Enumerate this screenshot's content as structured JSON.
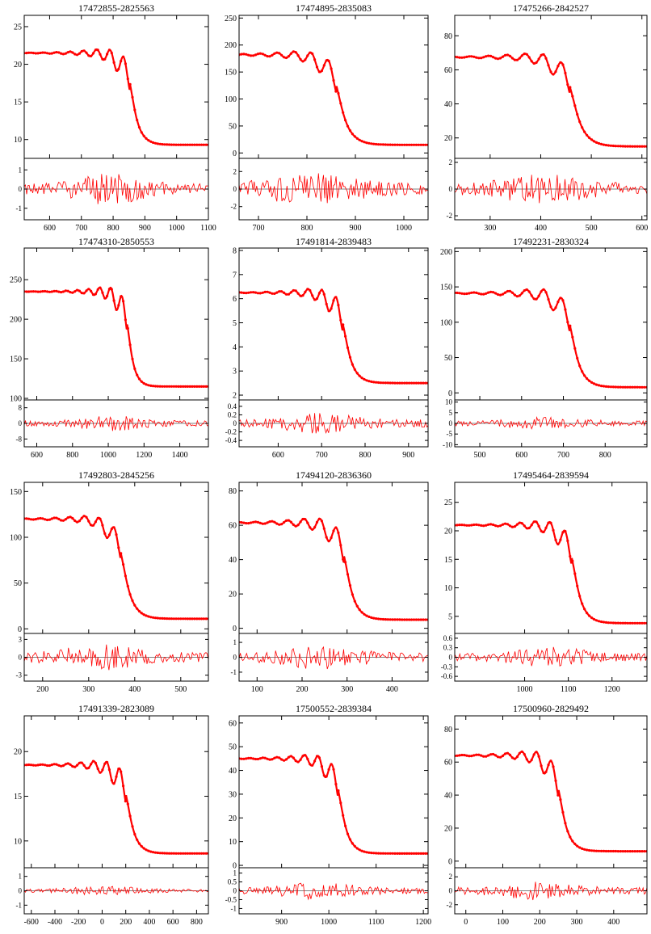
{
  "chart_data": [
    {
      "type": "line",
      "title": "17472855-2825563",
      "xlim": [
        520,
        1100
      ],
      "xticks": [
        600,
        700,
        800,
        900,
        1000,
        1100
      ],
      "ylim": [
        7.5,
        26.5
      ],
      "yticks": [
        10,
        15,
        20,
        25
      ],
      "rlim": [
        -1.6,
        1.6
      ],
      "rticks": [
        1,
        0,
        -1
      ],
      "model": {
        "base": 21.5,
        "amp": 4.5,
        "tail": 9.3,
        "center": 852,
        "width": 20,
        "period": 42,
        "osc_depth": 2.2
      },
      "residual": {
        "scale": 0.3,
        "seed": 1
      },
      "colors": {
        "model": "#ff0000",
        "data": "#000000"
      }
    },
    {
      "type": "line",
      "title": "17474895-2835083",
      "xlim": [
        660,
        1050
      ],
      "xticks": [
        700,
        800,
        900,
        1000
      ],
      "ylim": [
        -10,
        255
      ],
      "yticks": [
        0,
        50,
        100,
        150,
        200,
        250
      ],
      "rlim": [
        -3.5,
        3.5
      ],
      "rticks": [
        2,
        0,
        -2
      ],
      "model": {
        "base": 182,
        "amp": 58,
        "tail": 15,
        "center": 860,
        "width": 17,
        "period": 35,
        "osc_depth": 28
      },
      "residual": {
        "scale": 0.7,
        "seed": 2
      },
      "colors": {
        "model": "#ff0000",
        "data": "#000000"
      }
    },
    {
      "type": "line",
      "title": "17475266-2842527",
      "xlim": [
        230,
        610
      ],
      "xticks": [
        300,
        400,
        500,
        600
      ],
      "ylim": [
        8,
        92
      ],
      "yticks": [
        20,
        40,
        60,
        80
      ],
      "rlim": [
        -2.3,
        2.3
      ],
      "rticks": [
        2,
        0,
        -2
      ],
      "model": {
        "base": 67.5,
        "amp": 17,
        "tail": 15,
        "center": 458,
        "width": 17,
        "period": 36,
        "osc_depth": 9
      },
      "residual": {
        "scale": 0.4,
        "seed": 3
      },
      "colors": {
        "model": "#ff0000",
        "data": "#000000"
      }
    },
    {
      "type": "line",
      "title": "17474310-2850553",
      "xlim": [
        530,
        1560
      ],
      "xticks": [
        600,
        800,
        1000,
        1200,
        1400
      ],
      "ylim": [
        98,
        290
      ],
      "yticks": [
        100,
        150,
        200,
        250
      ],
      "rlim": [
        -12,
        12
      ],
      "rticks": [
        8,
        0,
        -8
      ],
      "model": {
        "base": 235,
        "amp": 40,
        "tail": 115,
        "center": 1105,
        "width": 28,
        "period": 62,
        "osc_depth": 22
      },
      "residual": {
        "scale": 1.5,
        "seed": 4
      },
      "colors": {
        "model": "#ff0000",
        "data": "#000000"
      }
    },
    {
      "type": "line",
      "title": "17491814-2839483",
      "xlim": [
        510,
        945
      ],
      "xticks": [
        600,
        700,
        800,
        900
      ],
      "ylim": [
        1.8,
        8.1
      ],
      "yticks": [
        2,
        3,
        4,
        5,
        6,
        7,
        8
      ],
      "rlim": [
        -0.55,
        0.55
      ],
      "rticks": [
        0.4,
        0.2,
        0,
        -0.2,
        -0.4
      ],
      "model": {
        "base": 6.25,
        "amp": 1.3,
        "tail": 2.5,
        "center": 748,
        "width": 16,
        "period": 32,
        "osc_depth": 0.7
      },
      "residual": {
        "scale": 0.09,
        "seed": 5
      },
      "colors": {
        "model": "#ff0000",
        "data": "#000000"
      }
    },
    {
      "type": "line",
      "title": "17492231-2830324",
      "xlim": [
        440,
        900
      ],
      "xticks": [
        500,
        600,
        700,
        800
      ],
      "ylim": [
        -10,
        205
      ],
      "yticks": [
        0,
        50,
        100,
        150,
        200
      ],
      "rlim": [
        -11,
        11
      ],
      "rticks": [
        10,
        5,
        0,
        -5,
        -10
      ],
      "model": {
        "base": 141,
        "amp": 46,
        "tail": 8,
        "center": 715,
        "width": 18,
        "period": 42,
        "osc_depth": 22
      },
      "residual": {
        "scale": 1.1,
        "seed": 6
      },
      "colors": {
        "model": "#ff0000",
        "data": "#000000"
      }
    },
    {
      "type": "line",
      "title": "17492803-2845256",
      "xlim": [
        160,
        560
      ],
      "xticks": [
        200,
        300,
        400,
        500
      ],
      "ylim": [
        -5,
        160
      ],
      "yticks": [
        0,
        50,
        100,
        150
      ],
      "rlim": [
        -4,
        4
      ],
      "rticks": [
        3,
        0,
        -3
      ],
      "model": {
        "base": 120,
        "amp": 34,
        "tail": 11,
        "center": 370,
        "width": 16,
        "period": 32,
        "osc_depth": 16
      },
      "residual": {
        "scale": 0.8,
        "seed": 7
      },
      "colors": {
        "model": "#ff0000",
        "data": "#000000"
      }
    },
    {
      "type": "line",
      "title": "17494120-2836360",
      "xlim": [
        60,
        480
      ],
      "xticks": [
        100,
        200,
        300,
        400
      ],
      "ylim": [
        -3,
        85
      ],
      "yticks": [
        0,
        20,
        40,
        60,
        80
      ],
      "rlim": [
        -1.6,
        1.6
      ],
      "rticks": [
        1,
        0,
        -1
      ],
      "model": {
        "base": 61.5,
        "amp": 18.5,
        "tail": 5,
        "center": 293,
        "width": 16,
        "period": 36,
        "osc_depth": 10
      },
      "residual": {
        "scale": 0.3,
        "seed": 8
      },
      "colors": {
        "model": "#ff0000",
        "data": "#000000"
      }
    },
    {
      "type": "line",
      "title": "17495464-2839594",
      "xlim": [
        840,
        1280
      ],
      "xticks": [
        1000,
        1100,
        1200
      ],
      "ylim": [
        2,
        28.5
      ],
      "yticks": [
        5,
        10,
        15,
        20,
        25
      ],
      "rlim": [
        -0.75,
        0.75
      ],
      "rticks": [
        0.6,
        0.3,
        0,
        -0.3,
        -0.6
      ],
      "model": {
        "base": 21,
        "amp": 5.7,
        "tail": 3.8,
        "center": 1108,
        "width": 16,
        "period": 34,
        "osc_depth": 3
      },
      "residual": {
        "scale": 0.12,
        "seed": 9
      },
      "colors": {
        "model": "#ff0000",
        "data": "#000000"
      }
    },
    {
      "type": "line",
      "title": "17491339-2823089",
      "xlim": [
        -660,
        900
      ],
      "xticks": [
        -600,
        -400,
        -200,
        0,
        200,
        400,
        600,
        800
      ],
      "ylim": [
        7,
        24
      ],
      "yticks": [
        10,
        15,
        20
      ],
      "rlim": [
        -1.6,
        1.6
      ],
      "rticks": [
        1,
        0,
        -1
      ],
      "model": {
        "base": 18.5,
        "amp": 3.5,
        "tail": 8.6,
        "center": 200,
        "width": 55,
        "period": 110,
        "osc_depth": 2.0
      },
      "residual": {
        "scale": 0.12,
        "seed": 10
      },
      "colors": {
        "model": "#ff0000",
        "data": "#000000"
      }
    },
    {
      "type": "line",
      "title": "17500552-2839384",
      "xlim": [
        810,
        1210
      ],
      "xticks": [
        900,
        1000,
        1100,
        1200
      ],
      "ylim": [
        -1,
        63
      ],
      "yticks": [
        0,
        10,
        20,
        30,
        40,
        50,
        60
      ],
      "rlim": [
        -1.3,
        1.3
      ],
      "rticks": [
        1,
        0.5,
        0,
        -0.5,
        -1
      ],
      "model": {
        "base": 45,
        "amp": 13,
        "tail": 5,
        "center": 1020,
        "width": 14,
        "period": 29,
        "osc_depth": 7
      },
      "residual": {
        "scale": 0.18,
        "seed": 11
      },
      "colors": {
        "model": "#ff0000",
        "data": "#000000"
      }
    },
    {
      "type": "line",
      "title": "17500960-2829492",
      "xlim": [
        -30,
        490
      ],
      "xticks": [
        0,
        100,
        200,
        300,
        400
      ],
      "ylim": [
        -4,
        88
      ],
      "yticks": [
        0,
        20,
        40,
        60,
        80
      ],
      "rlim": [
        -3.3,
        3.3
      ],
      "rticks": [
        2,
        0,
        -2
      ],
      "model": {
        "base": 64,
        "amp": 18.5,
        "tail": 6,
        "center": 250,
        "width": 18,
        "period": 40,
        "osc_depth": 10
      },
      "residual": {
        "scale": 0.5,
        "seed": 12
      },
      "colors": {
        "model": "#ff0000",
        "data": "#000000"
      }
    }
  ]
}
